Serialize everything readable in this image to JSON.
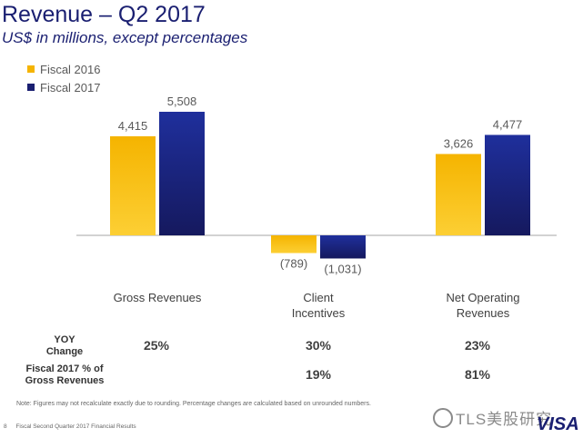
{
  "header": {
    "title": "Revenue – Q2 2017",
    "subtitle": "US$ in millions, except percentages"
  },
  "colors": {
    "fiscal_2016": "#f5b400",
    "fiscal_2017": "#1a1f71",
    "axis": "#a6a6a6",
    "value_label": "#595959",
    "category_label": "#404040"
  },
  "chart_data": {
    "type": "bar",
    "categories": [
      "Gross Revenues",
      "Client Incentives",
      "Net Operating Revenues"
    ],
    "category_display": [
      [
        "Gross Revenues"
      ],
      [
        "Client",
        "Incentives"
      ],
      [
        "Net Operating",
        "Revenues"
      ]
    ],
    "series": [
      {
        "name": "Fiscal 2016",
        "values": [
          4415,
          -789,
          3626
        ],
        "labels": [
          "4,415",
          "(789)",
          "3,626"
        ]
      },
      {
        "name": "Fiscal 2017",
        "values": [
          5508,
          -1031,
          4477
        ],
        "labels": [
          "5,508",
          "(1,031)",
          "4,477"
        ]
      }
    ],
    "ylim": [
      -1031,
      5508
    ],
    "grid": false,
    "legend": "top-left"
  },
  "stats": {
    "yoy_label": [
      "YOY",
      "Change"
    ],
    "yoy_values": [
      "25%",
      "30%",
      "23%"
    ],
    "share_label": [
      "Fiscal 2017 % of",
      "Gross Revenues"
    ],
    "share_values": [
      "",
      "19%",
      "81%"
    ]
  },
  "note": "Note: Figures may not recalculate exactly due to rounding. Percentage changes are calculated based on unrounded numbers.",
  "footer": {
    "page": "8",
    "text": "Fiscal Second Quarter 2017 Financial Results"
  },
  "watermark": "TLS美股研究",
  "logo": "VISA"
}
